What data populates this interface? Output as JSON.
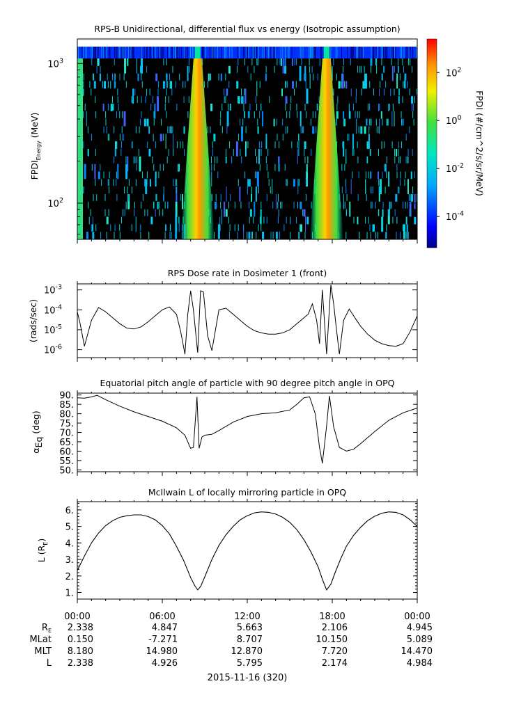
{
  "time_axis": {
    "tick_labels": [
      "00:00",
      "06:00",
      "12:00",
      "18:00",
      "00:00"
    ],
    "date_label": "2015-11-16 (320)"
  },
  "ephemeris": {
    "row_labels": {
      "re_main": "R",
      "re_sub": "E",
      "mlat": "MLat",
      "mlt": "MLT",
      "l": "L"
    },
    "re": [
      "2.338",
      "4.847",
      "5.663",
      "2.106",
      "4.945"
    ],
    "mlat": [
      "0.150",
      "-7.271",
      "8.707",
      "10.150",
      "5.089"
    ],
    "mlt": [
      "8.180",
      "14.980",
      "12.870",
      "7.720",
      "14.470"
    ],
    "l": [
      "2.338",
      "4.926",
      "5.795",
      "2.174",
      "4.984"
    ]
  },
  "chart_data": [
    {
      "type": "heatmap",
      "title": "RPS-B  Unidirectional, differential flux vs energy (Isotropic assumption)",
      "ylabel": {
        "main": "FPDI",
        "sub": "Energy",
        "unit": " (MeV)"
      },
      "y_scale": "log",
      "y_ticks": [
        {
          "base": "10",
          "exp": "2",
          "value": 100
        },
        {
          "base": "10",
          "exp": "3",
          "value": 1000
        }
      ],
      "ylim": [
        55,
        1500
      ],
      "xlim_hours": [
        0,
        24
      ],
      "colorbar": {
        "label": "FPDI (#/cm^2/s/sr/MeV)",
        "scale": "log",
        "range_log10": [
          -5.3,
          3.4
        ],
        "ticks": [
          {
            "base": "10",
            "exp": "2",
            "value": 2
          },
          {
            "base": "10",
            "exp": "0",
            "value": 0
          },
          {
            "base": "10",
            "exp": "-2",
            "value": -2
          },
          {
            "base": "10",
            "exp": "-4",
            "value": -4
          }
        ]
      },
      "features": [
        {
          "description": "flux enhancement near perigee",
          "center_hour": 8.5
        },
        {
          "description": "flux enhancement near perigee",
          "center_hour": 17.6
        }
      ]
    },
    {
      "type": "line",
      "title": "RPS  Dose rate in Dosimeter 1 (front)",
      "ylabel": "(rads/sec)",
      "y_scale": "log",
      "ylim": [
        4e-07,
        0.002
      ],
      "y_ticks": [
        {
          "base": "10",
          "exp": "-3",
          "value": 0.001
        },
        {
          "base": "10",
          "exp": "-4",
          "value": 0.0001
        },
        {
          "base": "10",
          "exp": "-5",
          "value": 1e-05
        },
        {
          "base": "10",
          "exp": "-6",
          "value": 1e-06
        }
      ],
      "x_hours": [
        0,
        0.2,
        0.5,
        1.0,
        1.5,
        2.0,
        2.5,
        3.0,
        3.5,
        4.0,
        4.5,
        5.0,
        5.5,
        6.0,
        6.5,
        7.0,
        7.3,
        7.6,
        7.8,
        8.0,
        8.2,
        8.5,
        8.7,
        8.9,
        9.2,
        9.5,
        10.0,
        10.5,
        11.0,
        11.5,
        12.0,
        12.5,
        13.0,
        13.5,
        14.0,
        14.5,
        15.0,
        15.5,
        16.0,
        16.3,
        16.6,
        16.9,
        17.1,
        17.3,
        17.6,
        17.9,
        18.1,
        18.3,
        18.5,
        18.8,
        19.2,
        19.6,
        20.0,
        20.5,
        21.0,
        21.5,
        22.0,
        22.5,
        23.0,
        23.5,
        24.0
      ],
      "values": [
        8e-05,
        2e-05,
        1.5e-06,
        3e-05,
        0.00013,
        8e-05,
        4e-05,
        2e-05,
        1.2e-05,
        1.1e-05,
        1.4e-05,
        2.5e-05,
        5e-05,
        0.0001,
        0.00014,
        6e-05,
        8e-06,
        6e-07,
        6e-05,
        0.0009,
        0.0001,
        7e-07,
        0.0009,
        0.0008,
        5e-06,
        9e-07,
        0.0001,
        0.00012,
        6e-05,
        3e-05,
        1.5e-05,
        9e-06,
        7e-06,
        6e-06,
        6e-06,
        7e-06,
        1e-05,
        2e-05,
        4e-05,
        6e-05,
        0.0002,
        3e-05,
        2e-06,
        0.001,
        6e-07,
        0.0018,
        0.0002,
        1e-05,
        6e-07,
        3e-05,
        0.00011,
        4e-05,
        1.5e-05,
        6e-06,
        3e-06,
        2e-06,
        1.6e-06,
        1.5e-06,
        2e-06,
        8e-06,
        5e-05
      ]
    },
    {
      "type": "line",
      "title": "Equatorial pitch angle of particle with 90 degree pitch angle in OPQ",
      "ylabel": {
        "main": "α",
        "sub": "Eq",
        "unit": " (deg)"
      },
      "ylim": [
        49,
        91
      ],
      "y_ticks": [
        "90.",
        "85.",
        "80.",
        "75.",
        "70.",
        "65.",
        "60.",
        "55.",
        "50."
      ],
      "x_hours": [
        0,
        0.5,
        1,
        1.4,
        2,
        3,
        4,
        5,
        6,
        7,
        7.6,
        8,
        8.2,
        8.45,
        8.6,
        8.8,
        9.0,
        9.5,
        10,
        11,
        12,
        13,
        14,
        15,
        15.5,
        16,
        16.4,
        16.8,
        17.1,
        17.3,
        17.6,
        17.8,
        18.1,
        18.5,
        19,
        19.5,
        20,
        21,
        22,
        23,
        24
      ],
      "values": [
        88.5,
        88.3,
        89,
        89.8,
        87.5,
        84,
        81,
        78.5,
        76,
        72.5,
        68.5,
        61.5,
        62,
        89,
        61.5,
        67.5,
        68.5,
        69,
        71,
        75.5,
        78.5,
        80,
        80.5,
        82,
        85,
        88.5,
        89,
        80,
        62,
        53.5,
        73.5,
        89.5,
        73,
        62,
        60,
        61,
        64,
        70.5,
        76.5,
        80.5,
        83
      ]
    },
    {
      "type": "line",
      "title": "McIlwain L of locally mirroring particle in OPQ",
      "ylabel": {
        "main": "L (R",
        "sub": "E",
        "unit": ")"
      },
      "ylim": [
        0.6,
        6.5
      ],
      "y_ticks": [
        "6.",
        "5.",
        "4.",
        "3.",
        "2.",
        "1."
      ],
      "x_hours": [
        0,
        0.5,
        1,
        1.5,
        2,
        2.5,
        3,
        3.5,
        4,
        4.5,
        5,
        5.5,
        6,
        6.5,
        7,
        7.5,
        8,
        8.3,
        8.5,
        8.7,
        9,
        9.5,
        10,
        10.5,
        11,
        11.5,
        12,
        12.5,
        13,
        13.5,
        14,
        14.5,
        15,
        15.5,
        16,
        16.5,
        17,
        17.3,
        17.6,
        17.9,
        18.2,
        18.6,
        19,
        19.5,
        20,
        20.5,
        21,
        21.5,
        22,
        22.5,
        23,
        23.5,
        24
      ],
      "values": [
        2.34,
        3.2,
        4.0,
        4.6,
        5.05,
        5.35,
        5.55,
        5.65,
        5.7,
        5.7,
        5.6,
        5.4,
        5.05,
        4.55,
        3.8,
        2.95,
        1.9,
        1.4,
        1.15,
        1.35,
        1.95,
        3.0,
        3.85,
        4.5,
        5.0,
        5.4,
        5.65,
        5.82,
        5.88,
        5.85,
        5.75,
        5.55,
        5.25,
        4.8,
        4.2,
        3.45,
        2.55,
        1.8,
        1.15,
        1.5,
        2.2,
        3.05,
        3.8,
        4.45,
        4.95,
        5.35,
        5.62,
        5.8,
        5.88,
        5.85,
        5.7,
        5.4,
        5.0
      ]
    }
  ]
}
